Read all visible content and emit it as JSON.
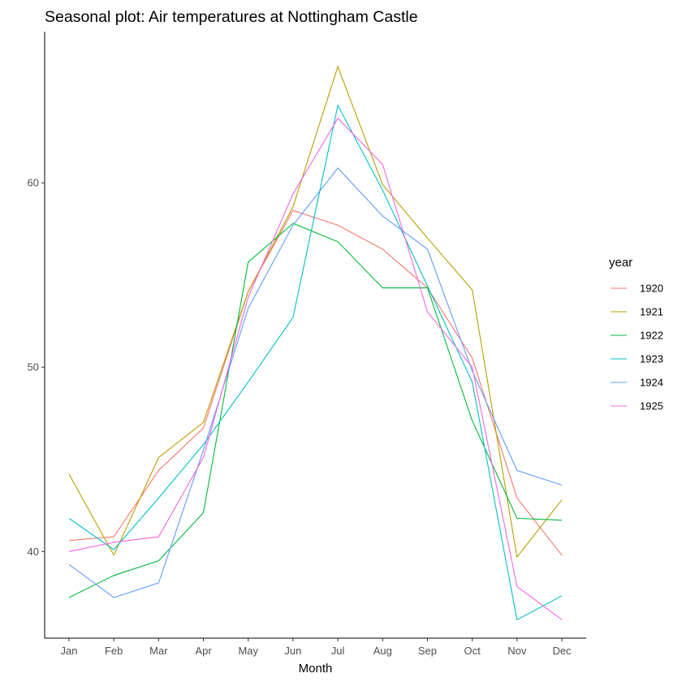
{
  "chart_data": {
    "type": "line",
    "title": "Seasonal plot: Air temperatures at Nottingham Castle",
    "xlabel": "Month",
    "ylabel": "",
    "categories": [
      "Jan",
      "Feb",
      "Mar",
      "Apr",
      "May",
      "Jun",
      "Jul",
      "Aug",
      "Sep",
      "Oct",
      "Nov",
      "Dec"
    ],
    "yticks": [
      40,
      50,
      60
    ],
    "ylim": [
      35.3,
      68.2
    ],
    "grid": false,
    "legend_title": "year",
    "legend_position": "right",
    "series": [
      {
        "name": "1920",
        "color": "#F8766D",
        "values": [
          40.6,
          40.8,
          44.4,
          46.7,
          54.1,
          58.5,
          57.7,
          56.4,
          54.3,
          50.5,
          42.9,
          39.8
        ]
      },
      {
        "name": "1921",
        "color": "#B79F00",
        "values": [
          44.2,
          39.8,
          45.1,
          47.0,
          54.1,
          58.7,
          66.3,
          59.9,
          57.0,
          54.2,
          39.7,
          42.8
        ]
      },
      {
        "name": "1922",
        "color": "#00BA38",
        "values": [
          37.5,
          38.7,
          39.5,
          42.1,
          55.7,
          57.8,
          56.8,
          54.3,
          54.3,
          47.1,
          41.8,
          41.7
        ]
      },
      {
        "name": "1923",
        "color": "#00BFC4",
        "values": [
          41.8,
          40.1,
          42.9,
          45.8,
          49.2,
          52.7,
          64.2,
          59.6,
          54.4,
          49.2,
          36.3,
          37.6
        ]
      },
      {
        "name": "1924",
        "color": "#619CFF",
        "values": [
          39.3,
          37.5,
          38.3,
          45.5,
          53.2,
          57.7,
          60.8,
          58.2,
          56.4,
          49.8,
          44.4,
          43.6
        ]
      },
      {
        "name": "1925",
        "color": "#F564E3",
        "values": [
          40.0,
          40.5,
          40.8,
          45.1,
          53.8,
          59.4,
          63.5,
          61.0,
          53.0,
          50.0,
          38.1,
          36.3
        ]
      }
    ]
  }
}
